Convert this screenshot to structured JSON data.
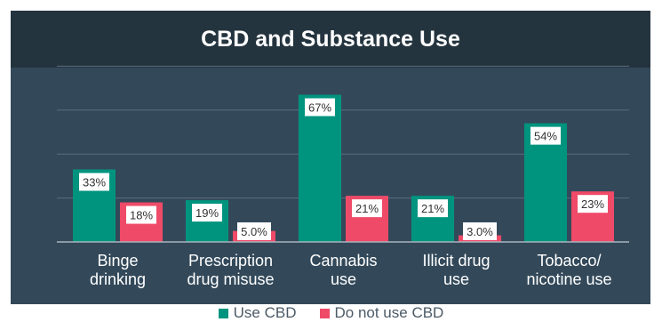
{
  "colors": {
    "title_band": "#24343f",
    "plot_band": "#33495a",
    "gridline": "#5a6e7c",
    "use_cbd": "#00947e",
    "no_cbd": "#ef4a68",
    "label_text": "#ffffff"
  },
  "chart_data": {
    "type": "bar",
    "title": "CBD and Substance Use",
    "categories": [
      [
        "Binge",
        "drinking"
      ],
      [
        "Prescription",
        "drug misuse"
      ],
      [
        "Cannabis",
        "use"
      ],
      [
        "Illicit drug",
        "use"
      ],
      [
        "Tobacco/",
        "nicotine use"
      ]
    ],
    "series": [
      {
        "name": "Use CBD",
        "values": [
          33,
          19,
          67,
          21,
          54
        ],
        "labels": [
          "33%",
          "19%",
          "67%",
          "21%",
          "54%"
        ]
      },
      {
        "name": "Do not use CBD",
        "values": [
          18,
          5,
          21,
          3,
          23
        ],
        "labels": [
          "18%",
          "5.0%",
          "21%",
          "3.0%",
          "23%"
        ]
      }
    ],
    "ylim": [
      0,
      80
    ],
    "grid": true,
    "legend_position": "bottom"
  }
}
